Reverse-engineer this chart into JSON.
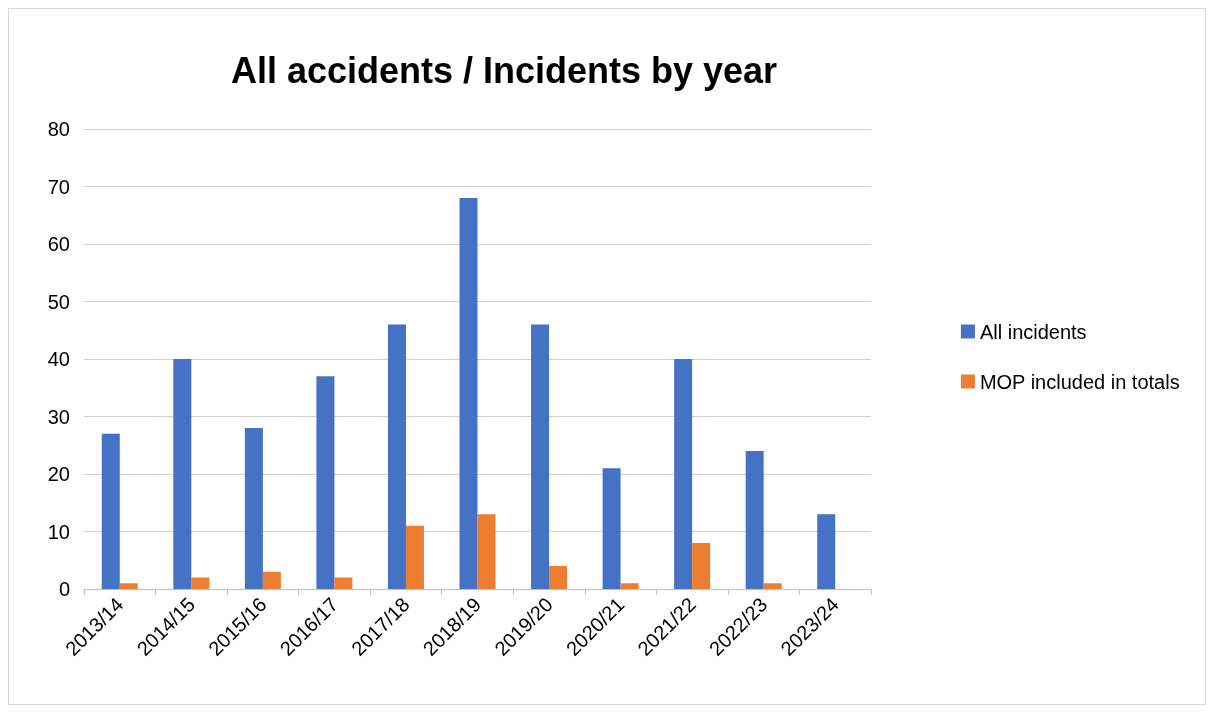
{
  "chart_data": {
    "type": "bar",
    "title": "All accidents / Incidents by year",
    "categories": [
      "2013/14",
      "2014/15",
      "2015/16",
      "2016/17",
      "2017/18",
      "2018/19",
      "2019/20",
      "2020/21",
      "2021/22",
      "2022/23",
      "2023/24"
    ],
    "series": [
      {
        "name": "All incidents",
        "color": "#4472c4",
        "values": [
          27,
          40,
          28,
          37,
          46,
          68,
          46,
          21,
          40,
          24,
          13
        ]
      },
      {
        "name": "MOP included in totals",
        "color": "#ed7d31",
        "values": [
          1,
          2,
          3,
          2,
          11,
          13,
          4,
          1,
          8,
          1,
          null
        ]
      }
    ],
    "ylim": [
      0,
      80
    ],
    "yticks": [
      0,
      10,
      20,
      30,
      40,
      50,
      60,
      70,
      80
    ],
    "grid": "y",
    "legend": "right"
  }
}
